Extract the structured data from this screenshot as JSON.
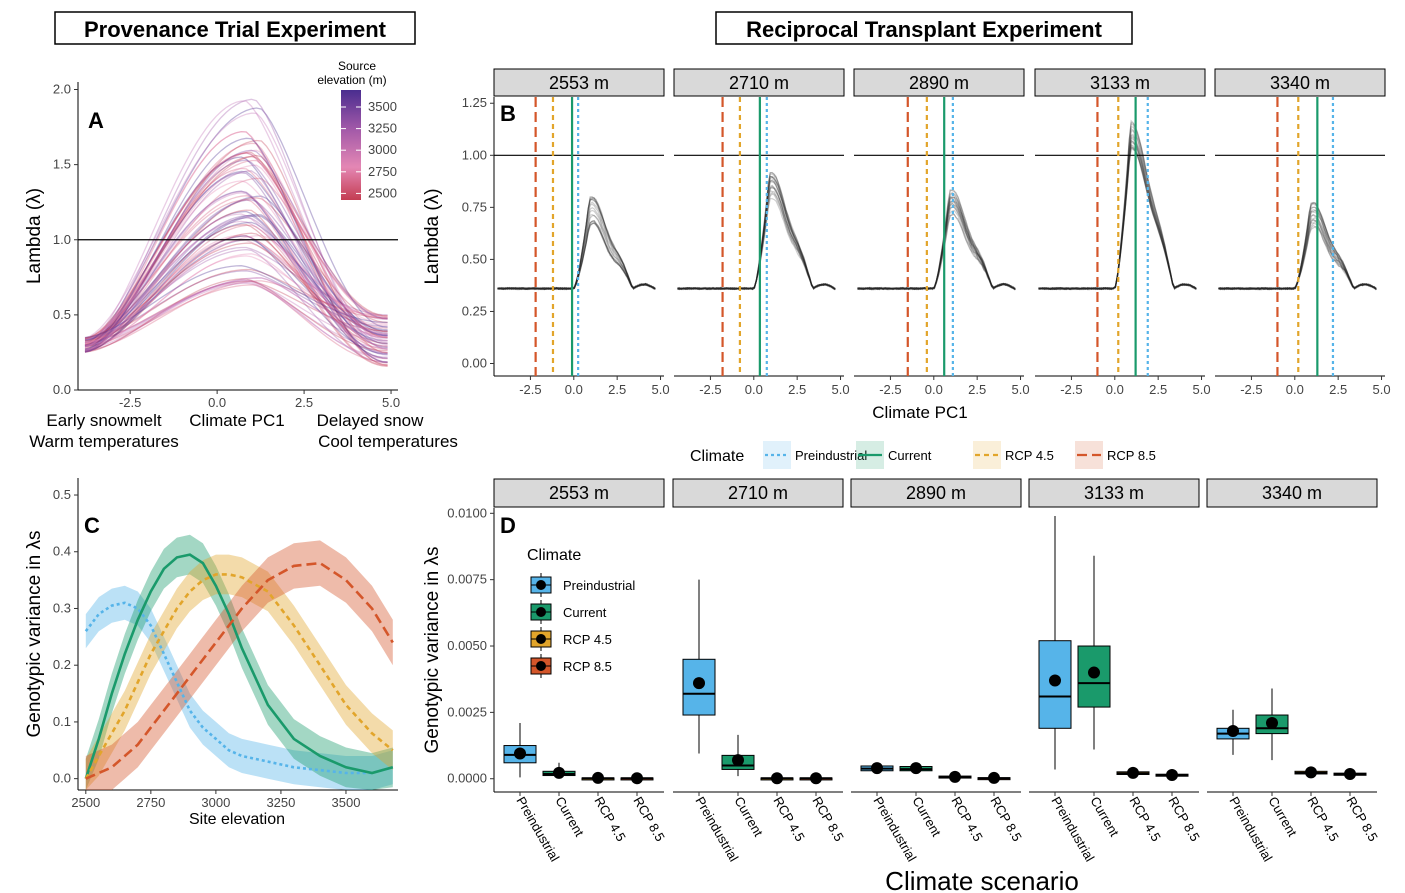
{
  "headers": {
    "left": "Provenance Trial Experiment",
    "right": "Reciprocal Transplant Experiment"
  },
  "colors": {
    "Preindustrial": "#56B4E9",
    "Current": "#1a9a6b",
    "RCP 4.5": "#E2A52B",
    "RCP 8.5": "#D4562A"
  },
  "chart_data": [
    {
      "panel": "A",
      "type": "line",
      "ylabel": "Lambda (λ)",
      "xlabel": "Climate PC1",
      "x_annot_left": [
        "Early snowmelt",
        "Warm temperatures"
      ],
      "x_annot_right": [
        "Delayed snow",
        "Cool temperatures"
      ],
      "xlim": [
        -4,
        5.2
      ],
      "ylim": [
        0,
        2.05
      ],
      "xticks": [
        "-2.5",
        "0.0",
        "2.5",
        "5.0"
      ],
      "yticks": [
        "0.0",
        "0.5",
        "1.0",
        "1.5",
        "2.0"
      ],
      "hline": 1.0,
      "legend": {
        "title": [
          "Source",
          "elevation (m)"
        ],
        "labels": [
          "3500",
          "3250",
          "3000",
          "2750",
          "2500"
        ],
        "placement": "top-right"
      },
      "curve_start_x": -3.8,
      "curve_start_y": 0.3,
      "curve_end_x": 4.9,
      "curve_end_y": 0.33,
      "peak_x": 1.0,
      "peak_min": 0.7,
      "peak_max": 2.0
    },
    {
      "panel": "B",
      "type": "line",
      "ylabel": "Lambda (λ)",
      "xlabel": "Climate PC1",
      "xlim": [
        -4.6,
        5.2
      ],
      "ylim": [
        -0.06,
        1.28
      ],
      "xticks": [
        "-2.5",
        "0.0",
        "2.5",
        "5.0"
      ],
      "yticks": [
        "0.00",
        "0.25",
        "0.50",
        "0.75",
        "1.00",
        "1.25"
      ],
      "hline": 1.0,
      "facets": [
        {
          "label": "2553 m",
          "baseline": 0.36,
          "peak": 0.73,
          "preindustrial": 0.25,
          "current": -0.1,
          "rcp45": -1.2,
          "rcp85": -2.2
        },
        {
          "label": "2710 m",
          "baseline": 0.36,
          "peak": 0.85,
          "preindustrial": 0.75,
          "current": 0.35,
          "rcp45": -0.8,
          "rcp85": -1.8
        },
        {
          "label": "2890 m",
          "baseline": 0.36,
          "peak": 0.76,
          "preindustrial": 1.1,
          "current": 0.6,
          "rcp45": -0.4,
          "rcp85": -1.5
        },
        {
          "label": "3133 m",
          "baseline": 0.36,
          "peak": 1.1,
          "preindustrial": 1.9,
          "current": 1.2,
          "rcp45": 0.2,
          "rcp85": -1.0
        },
        {
          "label": "3340 m",
          "baseline": 0.36,
          "peak": 0.7,
          "preindustrial": 2.2,
          "current": 1.3,
          "rcp45": 0.2,
          "rcp85": -1.0
        }
      ],
      "legend": {
        "title": "Climate",
        "entries": [
          "Preindustrial",
          "Current",
          "RCP 4.5",
          "RCP 8.5"
        ],
        "placement": "bottom"
      }
    },
    {
      "panel": "C",
      "type": "line",
      "ylabel": "Genotypic variance in λs",
      "xlabel": "Site elevation",
      "xlim": [
        2470,
        3700
      ],
      "ylim": [
        -0.02,
        0.53
      ],
      "xticks": [
        "2500",
        "2750",
        "3000",
        "3250",
        "3500"
      ],
      "yticks": [
        "0.0",
        "0.1",
        "0.2",
        "0.3",
        "0.4",
        "0.5"
      ],
      "series": [
        {
          "name": "Preindustrial",
          "x": [
            2500,
            2550,
            2600,
            2650,
            2700,
            2750,
            2800,
            2850,
            2900,
            2950,
            3000,
            3050,
            3100,
            3200,
            3300,
            3400,
            3500,
            3600,
            3680
          ],
          "y": [
            0.26,
            0.29,
            0.305,
            0.31,
            0.3,
            0.27,
            0.22,
            0.17,
            0.12,
            0.09,
            0.07,
            0.05,
            0.04,
            0.03,
            0.02,
            0.015,
            0.01,
            0.01,
            0.02
          ],
          "band": 0.03
        },
        {
          "name": "Current",
          "x": [
            2500,
            2550,
            2600,
            2650,
            2700,
            2750,
            2800,
            2850,
            2900,
            2950,
            3000,
            3050,
            3100,
            3200,
            3300,
            3400,
            3500,
            3600,
            3680
          ],
          "y": [
            0.0,
            0.07,
            0.15,
            0.22,
            0.28,
            0.33,
            0.37,
            0.39,
            0.395,
            0.38,
            0.34,
            0.29,
            0.23,
            0.13,
            0.07,
            0.04,
            0.02,
            0.01,
            0.02
          ],
          "band": 0.035
        },
        {
          "name": "RCP 4.5",
          "x": [
            2500,
            2550,
            2600,
            2650,
            2700,
            2750,
            2800,
            2850,
            2900,
            2950,
            3000,
            3050,
            3100,
            3200,
            3300,
            3400,
            3500,
            3600,
            3680
          ],
          "y": [
            0.0,
            0.04,
            0.08,
            0.12,
            0.17,
            0.22,
            0.26,
            0.3,
            0.33,
            0.35,
            0.36,
            0.36,
            0.355,
            0.33,
            0.27,
            0.2,
            0.13,
            0.08,
            0.05
          ],
          "band": 0.035
        },
        {
          "name": "RCP 8.5",
          "x": [
            2500,
            2550,
            2600,
            2650,
            2700,
            2750,
            2800,
            2850,
            2900,
            2950,
            3000,
            3050,
            3100,
            3200,
            3300,
            3400,
            3500,
            3600,
            3680
          ],
          "y": [
            0.0,
            0.01,
            0.02,
            0.04,
            0.06,
            0.09,
            0.12,
            0.15,
            0.18,
            0.21,
            0.24,
            0.27,
            0.3,
            0.35,
            0.375,
            0.38,
            0.35,
            0.3,
            0.24
          ],
          "band": 0.04
        }
      ]
    },
    {
      "panel": "D",
      "type": "box",
      "ylabel": "Genotypic variance in λs",
      "xlabel": "Climate scenario",
      "ylim": [
        -0.0005,
        0.0102
      ],
      "yticks": [
        "0.0000",
        "0.0025",
        "0.0050",
        "0.0075",
        "0.0100"
      ],
      "categories": [
        "Preindustrial",
        "Current",
        "RCP 4.5",
        "RCP 8.5"
      ],
      "legend": {
        "title": "Climate",
        "entries": [
          "Preindustrial",
          "Current",
          "RCP 4.5",
          "RCP 8.5"
        ],
        "placement": "top-left"
      },
      "facets": [
        {
          "label": "2553 m",
          "boxes": [
            {
              "min": 5e-05,
              "q1": 0.0006,
              "med": 0.0009,
              "q3": 0.00125,
              "max": 0.0021,
              "mean": 0.00095
            },
            {
              "min": 5e-05,
              "q1": 0.00012,
              "med": 0.00018,
              "q3": 0.00028,
              "max": 0.0006,
              "mean": 0.00022
            },
            {
              "min": 0.0,
              "q1": 1e-05,
              "med": 2e-05,
              "q3": 3e-05,
              "max": 5e-05,
              "mean": 3e-05
            },
            {
              "min": 0.0,
              "q1": 1e-05,
              "med": 2e-05,
              "q3": 3e-05,
              "max": 5e-05,
              "mean": 2e-05
            }
          ]
        },
        {
          "label": "2710 m",
          "boxes": [
            {
              "min": 0.00095,
              "q1": 0.0024,
              "med": 0.0032,
              "q3": 0.0045,
              "max": 0.0075,
              "mean": 0.0036
            },
            {
              "min": 0.0001,
              "q1": 0.00035,
              "med": 0.0005,
              "q3": 0.00088,
              "max": 0.00165,
              "mean": 0.0007
            },
            {
              "min": 0.0,
              "q1": 1e-05,
              "med": 2e-05,
              "q3": 3e-05,
              "max": 5e-05,
              "mean": 2e-05
            },
            {
              "min": 0.0,
              "q1": 1e-05,
              "med": 2e-05,
              "q3": 3e-05,
              "max": 5e-05,
              "mean": 2e-05
            }
          ]
        },
        {
          "label": "2890 m",
          "boxes": [
            {
              "min": 0.0002,
              "q1": 0.0003,
              "med": 0.00038,
              "q3": 0.00048,
              "max": 0.0006,
              "mean": 0.0004
            },
            {
              "min": 0.0002,
              "q1": 0.0003,
              "med": 0.00036,
              "q3": 0.00046,
              "max": 0.0006,
              "mean": 0.0004
            },
            {
              "min": 0.0,
              "q1": 4e-05,
              "med": 6e-05,
              "q3": 0.0001,
              "max": 0.00015,
              "mean": 7e-05
            },
            {
              "min": 0.0,
              "q1": 1e-05,
              "med": 2e-05,
              "q3": 4e-05,
              "max": 6e-05,
              "mean": 3e-05
            }
          ]
        },
        {
          "label": "3133 m",
          "boxes": [
            {
              "min": 0.00035,
              "q1": 0.0019,
              "med": 0.0031,
              "q3": 0.0052,
              "max": 0.0099,
              "mean": 0.0037
            },
            {
              "min": 0.0011,
              "q1": 0.0027,
              "med": 0.0036,
              "q3": 0.005,
              "max": 0.0084,
              "mean": 0.004
            },
            {
              "min": 0.0001,
              "q1": 0.00016,
              "med": 0.0002,
              "q3": 0.00026,
              "max": 0.00035,
              "mean": 0.00022
            },
            {
              "min": 5e-05,
              "q1": 0.0001,
              "med": 0.00013,
              "q3": 0.00017,
              "max": 0.00025,
              "mean": 0.00014
            }
          ]
        },
        {
          "label": "3340 m",
          "boxes": [
            {
              "min": 0.0009,
              "q1": 0.0015,
              "med": 0.0017,
              "q3": 0.0019,
              "max": 0.0026,
              "mean": 0.0018
            },
            {
              "min": 0.0007,
              "q1": 0.0017,
              "med": 0.0019,
              "q3": 0.0024,
              "max": 0.0034,
              "mean": 0.0021
            },
            {
              "min": 0.0001,
              "q1": 0.00018,
              "med": 0.00022,
              "q3": 0.00028,
              "max": 0.00035,
              "mean": 0.00024
            },
            {
              "min": 8e-05,
              "q1": 0.00013,
              "med": 0.00017,
              "q3": 0.00021,
              "max": 0.00028,
              "mean": 0.00018
            }
          ]
        }
      ]
    }
  ]
}
